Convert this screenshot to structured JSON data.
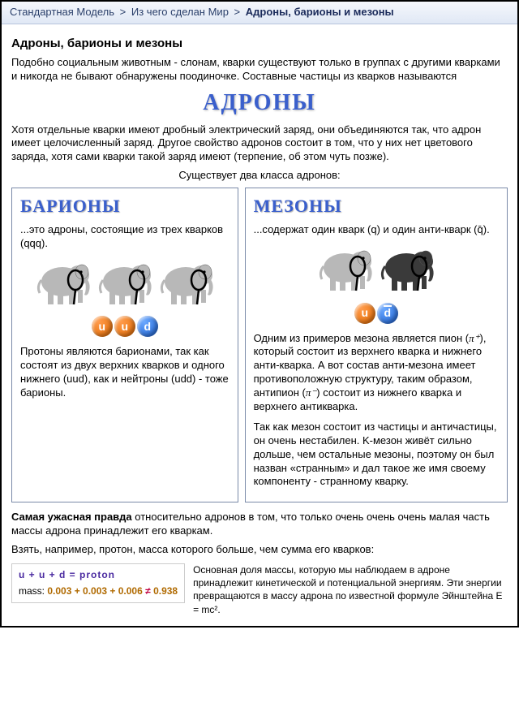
{
  "breadcrumb": {
    "a": "Стандартная Модель",
    "b": "Из чего сделан Мир",
    "c": "Адроны, барионы и мезоны",
    "sep": ">"
  },
  "title": "Адроны, барионы и мезоны",
  "intro": "Подобно социальным животным - слонам, кварки существуют только в группах с другими кварками и никогда не бывают обнаружены поодиночке. Составные частицы из кварков называются",
  "hadrons_heading": "АДРОНЫ",
  "charge_para": "Хотя отдельные кварки имеют дробный электрический заряд, они объединяются так, что адрон имеет целочисленный заряд. Другое свойство адронов состоит в том, что у них нет цветового заряда, хотя сами кварки такой заряд имеют (терпение, об этом чуть позже).",
  "classes_intro": "Существует два класса адронов:",
  "baryons": {
    "title": "БАРИОНЫ",
    "lead": "...это адроны, состоящие из трех кварков (qqq).",
    "quarks": [
      {
        "label": "u",
        "class": "u"
      },
      {
        "label": "u",
        "class": "u"
      },
      {
        "label": "d",
        "class": "d"
      }
    ],
    "body": "Протоны являются барионами, так как состоят из двух верхних кварков и одного нижнего (uud), как и нейтроны (udd) - тоже барионы.",
    "elephant_count": 3,
    "elephant_colors": [
      "gray",
      "gray",
      "gray"
    ]
  },
  "mesons": {
    "title": "МЕЗОНЫ",
    "lead": "...содержат один кварк (q) и один анти-кварк (q̄).",
    "quarks": [
      {
        "label": "u",
        "class": "u"
      },
      {
        "label": "d",
        "class": "d",
        "bar": true
      }
    ],
    "body1_a": "Одним из примеров мезона является пион (",
    "body1_b": "), который состоит из верхнего кварка и нижнего анти-кварка. А вот состав  анти-мезона имеет противоположную структуру, таким образом, антипион (",
    "body1_c": ") состоит из нижнего кварка и верхнего антикварка.",
    "pi_plus": "π⁺",
    "pi_minus": "π⁻",
    "body2": "Так как мезон состоит из частицы и античастицы, он очень нестабилен. K-мезон живёт сильно дольше, чем остальные мезоны, поэтому он был назван «странным» и дал такое же имя своему компоненту - странному кварку.",
    "elephant_count": 2,
    "elephant_colors": [
      "gray",
      "dark"
    ]
  },
  "truth": {
    "bold": "Самая ужасная правда",
    "rest": " относительно адронов в том, что только очень очень очень малая часть массы адрона принадлежит его кваркам."
  },
  "proton_intro": "Взять, например, протон, масса которого больше, чем сумма его кварков:",
  "mass_eq": {
    "line1": "u   +   u   +   d     =  proton",
    "label": "mass:  ",
    "nums": "0.003 + 0.003 + 0.006",
    "neq": " ≠ ",
    "res": "0.938"
  },
  "mass_note": "Основная доля массы, которую мы наблюдаем в адроне принадлежит кинетической и потенциальной энергиям. Эти энергии превращаются в массу адрона по известной формуле Эйнштейна E = mc².",
  "colors": {
    "breadcrumb_link": "#2a3f6a",
    "heading_blue": "#3a5fcc",
    "quark_u": "#e26a00",
    "quark_d": "#1a5fd0",
    "elephant_gray": "#b8b8b8",
    "elephant_dark": "#3a3a3a"
  }
}
